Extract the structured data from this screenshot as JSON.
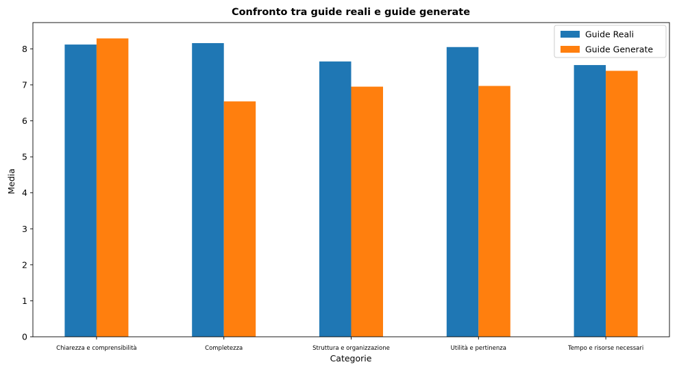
{
  "chart_data": {
    "type": "bar",
    "title": "Confronto tra guide reali e guide generate",
    "xlabel": "Categorie",
    "ylabel": "Media",
    "categories": [
      "Chiarezza e comprensibilità",
      "Completezza",
      "Struttura e organizzazione",
      "Utilità e pertinenza",
      "Tempo e risorse necessari"
    ],
    "series": [
      {
        "name": "Guide Reali",
        "color": "#1f77b4",
        "values": [
          8.12,
          8.16,
          7.65,
          8.05,
          7.55
        ]
      },
      {
        "name": "Guide Generate",
        "color": "#ff7f0e",
        "values": [
          8.29,
          6.54,
          6.95,
          6.97,
          7.39
        ]
      }
    ],
    "ylim": [
      0,
      8.73
    ],
    "yticks": [
      0,
      1,
      2,
      3,
      4,
      5,
      6,
      7,
      8
    ],
    "grid": false,
    "legend_position": "top-right"
  }
}
